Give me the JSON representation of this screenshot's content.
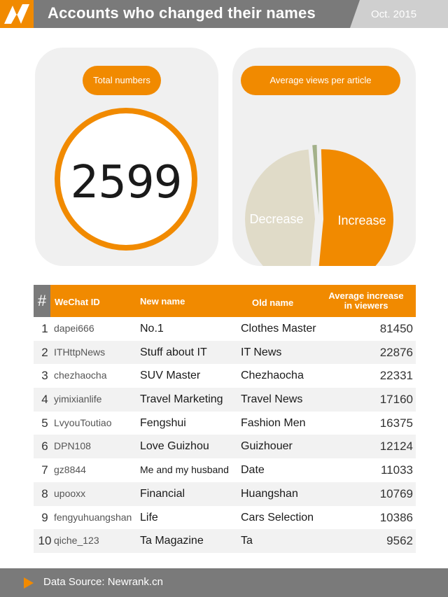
{
  "header": {
    "title": "Accounts who changed their names",
    "date": "Oct. 2015"
  },
  "colors": {
    "accent": "#f18a00",
    "gray": "#7a7a7a",
    "pie_decrease": "#e0dbc8",
    "pie_increase": "#f18a00",
    "pie_sliver": "#a3b18a"
  },
  "total_panel": {
    "label": "Total numbers",
    "value": "2599"
  },
  "chart_data": {
    "type": "pie",
    "title": "Average views per article",
    "slices": [
      {
        "label": "Increase",
        "value": 52
      },
      {
        "label": "Decrease",
        "value": 47
      },
      {
        "label": "",
        "value": 1
      }
    ]
  },
  "table": {
    "headers": {
      "rank": "#",
      "id": "WeChat ID",
      "new": "New name",
      "old": "Old name",
      "avg_line1": "Average increase",
      "avg_line2": "in viewers"
    },
    "rows": [
      {
        "rank": "1",
        "id": "dapei666",
        "new": "No.1",
        "old": "Clothes Master",
        "value": "81450"
      },
      {
        "rank": "2",
        "id": "ITHttpNews",
        "new": "Stuff about IT",
        "old": "IT News",
        "value": "22876"
      },
      {
        "rank": "3",
        "id": "chezhaocha",
        "new": "SUV Master",
        "old": "Chezhaocha",
        "value": "22331"
      },
      {
        "rank": "4",
        "id": "yimixianlife",
        "new": "Travel Marketing",
        "old": "Travel News",
        "value": "17160"
      },
      {
        "rank": "5",
        "id": "LvyouToutiao",
        "new": "Fengshui",
        "old": "Fashion Men",
        "value": "16375"
      },
      {
        "rank": "6",
        "id": "DPN108",
        "new": "Love Guizhou",
        "old": "Guizhouer",
        "value": "12124"
      },
      {
        "rank": "7",
        "id": "gz8844",
        "new": "Me and my husband",
        "old": "Date",
        "value": "11033"
      },
      {
        "rank": "8",
        "id": "upooxx",
        "new": "Financial",
        "old": "Huangshan",
        "value": "10769"
      },
      {
        "rank": "9",
        "id": "fengyuhuangshan",
        "new": "Life",
        "old": "Cars Selection",
        "value": "10386"
      },
      {
        "rank": "10",
        "id": "qiche_123",
        "new": "Ta Magazine",
        "old": "Ta",
        "value": "9562"
      }
    ]
  },
  "footer": {
    "source": "Data Source: Newrank.cn"
  }
}
